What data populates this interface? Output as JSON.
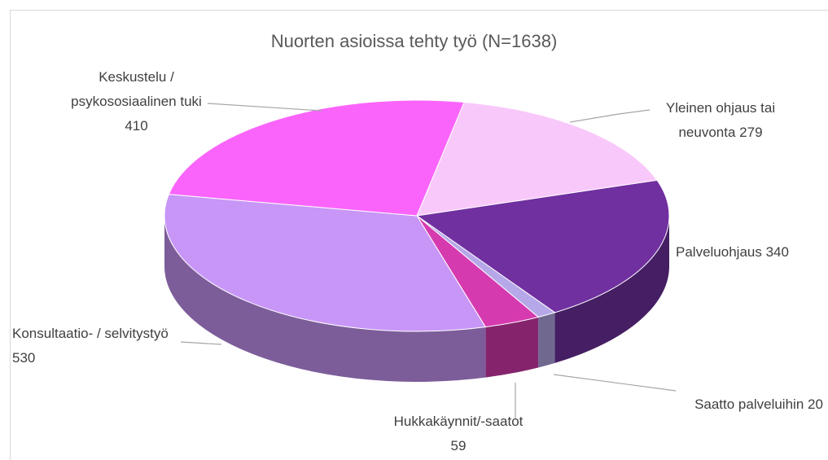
{
  "chart_data": {
    "type": "pie3d",
    "title": "Nuorten asioissa tehty työ (N=1638)",
    "categories": [
      "Yleinen ohjaus tai neuvonta",
      "Palveluohjaus",
      "Saatto palveluihin",
      "Hukkakäynnit/-saatot",
      "Konsultaatio- / selvitystyö",
      "Keskustelu / psykososiaalinen tuki"
    ],
    "values": [
      279,
      340,
      20,
      59,
      530,
      410
    ],
    "colors": [
      "#f9c8fa",
      "#7030a0",
      "#b6a8e8",
      "#d63aaf",
      "#c896f7",
      "#fb64fb"
    ]
  }
}
